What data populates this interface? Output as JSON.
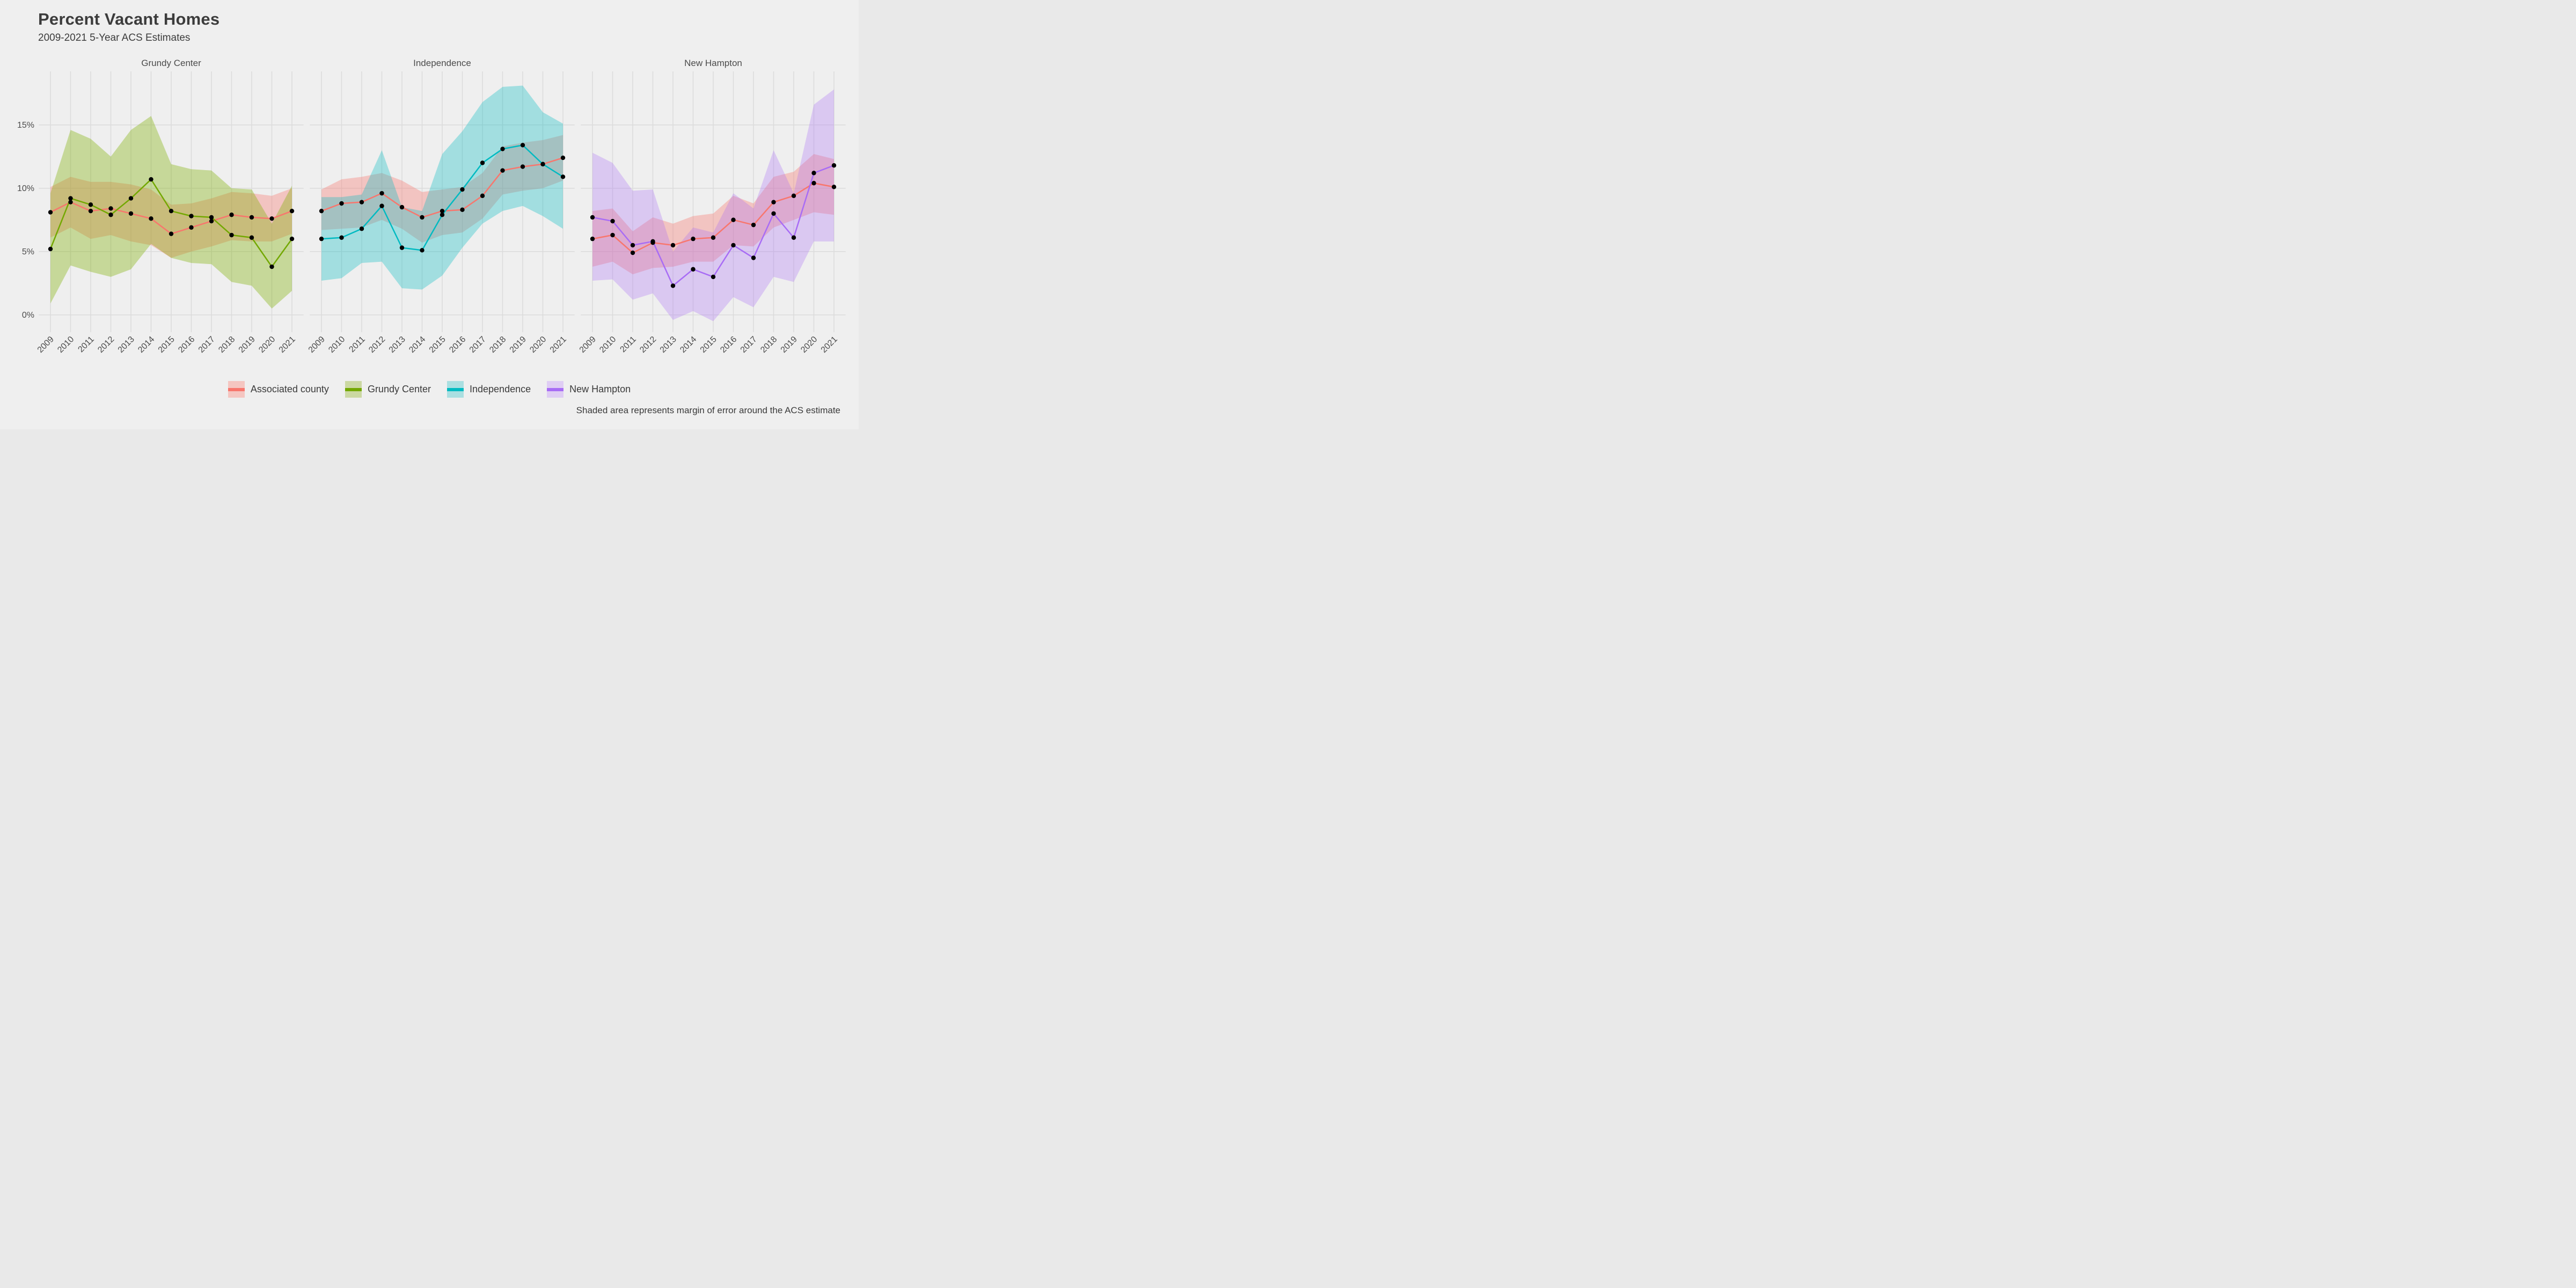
{
  "header": {
    "title": "Percent Vacant Homes",
    "subtitle": "2009-2021 5-Year ACS Estimates"
  },
  "caption": "Shaded area represents margin of error around the ACS estimate",
  "colors": {
    "background": "#EFEFEF",
    "gridline": "#DBDBDB",
    "point": "#000000",
    "text_dark": "#3C3C3C",
    "text_axis": "#4B4B4B",
    "associated_county": "#F8766D",
    "grundy_center": "#73A802",
    "independence": "#00BAC1",
    "new_hampton": "#A86CF5"
  },
  "legend": [
    {
      "label": "Associated county",
      "line": "#F8766D",
      "fill": "#F5C6C1"
    },
    {
      "label": "Grundy Center",
      "line": "#73A802",
      "fill": "#CBD8A2"
    },
    {
      "label": "Independence",
      "line": "#00BAC1",
      "fill": "#AADFE1"
    },
    {
      "label": "New Hampton",
      "line": "#A86CF5",
      "fill": "#DFCDF4"
    }
  ],
  "axis": {
    "years": [
      2009,
      2010,
      2011,
      2012,
      2013,
      2014,
      2015,
      2016,
      2017,
      2018,
      2019,
      2020,
      2021
    ],
    "y_ticks": [
      {
        "value": 0,
        "label": "0%"
      },
      {
        "value": 5,
        "label": "5%"
      },
      {
        "value": 10,
        "label": "10%"
      },
      {
        "value": 15,
        "label": "15%"
      }
    ],
    "ylim": [
      -1.3,
      19.2
    ],
    "grid": "vertical lines every year, horizontal lines every 5%"
  },
  "chart_data": [
    {
      "type": "line",
      "title": "Grundy Center",
      "x": [
        2009,
        2010,
        2011,
        2012,
        2013,
        2014,
        2015,
        2016,
        2017,
        2018,
        2019,
        2020,
        2021
      ],
      "series": [
        {
          "name": "Associated county",
          "color": "#F8766D",
          "fill": "rgba(248,118,109,0.35)",
          "values": [
            8.1,
            8.9,
            8.2,
            8.4,
            8.0,
            7.6,
            6.4,
            6.9,
            7.4,
            7.9,
            7.7,
            7.6,
            8.2
          ],
          "lower": [
            6.1,
            6.9,
            6.0,
            6.3,
            5.8,
            5.5,
            4.5,
            5.0,
            5.4,
            5.9,
            5.8,
            5.8,
            6.4
          ],
          "upper": [
            10.1,
            10.9,
            10.5,
            10.5,
            10.3,
            9.9,
            8.7,
            8.8,
            9.2,
            9.7,
            9.6,
            9.4,
            10.0
          ]
        },
        {
          "name": "Grundy Center",
          "color": "#73A802",
          "fill": "rgba(124,174,0,0.36)",
          "values": [
            5.2,
            9.2,
            8.7,
            7.9,
            9.2,
            10.7,
            8.2,
            7.8,
            7.7,
            6.3,
            6.1,
            3.8,
            6.0
          ],
          "lower": [
            0.9,
            3.9,
            3.4,
            3.0,
            3.6,
            5.6,
            4.5,
            4.1,
            4.0,
            2.6,
            2.3,
            0.5,
            1.9
          ],
          "upper": [
            9.6,
            14.6,
            13.9,
            12.5,
            14.6,
            15.7,
            11.9,
            11.5,
            11.4,
            10.0,
            9.9,
            7.2,
            10.2
          ]
        }
      ]
    },
    {
      "type": "line",
      "title": "Independence",
      "x": [
        2009,
        2010,
        2011,
        2012,
        2013,
        2014,
        2015,
        2016,
        2017,
        2018,
        2019,
        2020,
        2021
      ],
      "series": [
        {
          "name": "Associated county",
          "color": "#F8766D",
          "fill": "rgba(248,118,109,0.35)",
          "values": [
            8.2,
            8.8,
            8.9,
            9.6,
            8.5,
            7.7,
            8.2,
            8.3,
            9.4,
            11.4,
            11.7,
            11.9,
            12.4
          ],
          "lower": [
            6.7,
            6.8,
            6.9,
            7.5,
            6.8,
            5.7,
            6.3,
            6.5,
            7.6,
            9.5,
            9.8,
            10.0,
            10.6
          ],
          "upper": [
            9.9,
            10.7,
            10.9,
            11.2,
            10.6,
            9.7,
            9.9,
            10.1,
            11.2,
            13.3,
            13.6,
            13.8,
            14.2
          ]
        },
        {
          "name": "Independence",
          "color": "#00BAC1",
          "fill": "rgba(0,186,193,0.32)",
          "values": [
            6.0,
            6.1,
            6.8,
            8.6,
            5.3,
            5.1,
            7.9,
            9.9,
            12.0,
            13.1,
            13.4,
            11.9,
            10.9
          ],
          "lower": [
            2.7,
            2.9,
            4.1,
            4.2,
            2.1,
            2.0,
            3.1,
            5.3,
            7.2,
            8.2,
            8.6,
            7.8,
            6.8
          ],
          "upper": [
            9.3,
            9.3,
            9.5,
            13.0,
            8.5,
            8.2,
            12.7,
            14.5,
            16.8,
            18.0,
            18.1,
            16.0,
            15.1
          ]
        }
      ]
    },
    {
      "type": "line",
      "title": "New Hampton",
      "x": [
        2009,
        2010,
        2011,
        2012,
        2013,
        2014,
        2015,
        2016,
        2017,
        2018,
        2019,
        2020,
        2021
      ],
      "series": [
        {
          "name": "Associated county",
          "color": "#F8766D",
          "fill": "rgba(248,118,109,0.35)",
          "values": [
            6.0,
            6.3,
            4.9,
            5.7,
            5.5,
            6.0,
            6.1,
            7.5,
            7.1,
            8.9,
            9.4,
            10.4,
            10.1
          ],
          "lower": [
            3.8,
            4.2,
            3.2,
            3.7,
            3.8,
            4.2,
            4.2,
            5.5,
            5.4,
            6.9,
            7.5,
            8.1,
            7.9
          ],
          "upper": [
            8.2,
            8.4,
            6.6,
            7.7,
            7.2,
            7.8,
            8.0,
            9.4,
            8.8,
            10.9,
            11.3,
            12.7,
            12.3
          ]
        },
        {
          "name": "New Hampton",
          "color": "#A86CF5",
          "fill": "rgba(168,108,245,0.30)",
          "values": [
            7.7,
            7.4,
            5.5,
            5.8,
            2.3,
            3.6,
            3.0,
            5.5,
            4.5,
            8.0,
            6.1,
            11.2,
            11.8
          ],
          "lower": [
            2.7,
            2.8,
            1.2,
            1.7,
            -0.4,
            0.3,
            -0.5,
            1.4,
            0.6,
            3.0,
            2.6,
            5.8,
            5.8
          ],
          "upper": [
            12.8,
            12.0,
            9.8,
            9.9,
            5.0,
            6.9,
            6.5,
            9.6,
            8.4,
            13.0,
            9.6,
            16.6,
            17.8
          ]
        }
      ]
    }
  ]
}
